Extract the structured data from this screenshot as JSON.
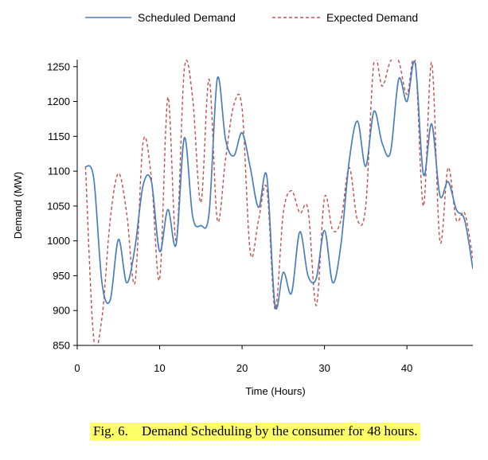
{
  "caption": {
    "label": "Fig. 6.",
    "text": "Demand Scheduling by the consumer for 48 hours.",
    "highlight": "#ffff66"
  },
  "chart_data": {
    "type": "line",
    "title": "",
    "xlabel": "Time (Hours)",
    "ylabel": "Demand (MW)",
    "xlim": [
      0,
      48
    ],
    "ylim": [
      850,
      1260
    ],
    "xticks": [
      0,
      10,
      20,
      30,
      40
    ],
    "yticks": [
      850,
      900,
      950,
      1000,
      1050,
      1100,
      1150,
      1200,
      1250
    ],
    "grid": false,
    "legend": "top",
    "x": [
      1,
      2,
      3,
      4,
      5,
      6,
      7,
      8,
      9,
      10,
      11,
      12,
      13,
      14,
      15,
      16,
      17,
      18,
      19,
      20,
      21,
      22,
      23,
      24,
      25,
      26,
      27,
      28,
      29,
      30,
      31,
      32,
      33,
      34,
      35,
      36,
      37,
      38,
      39,
      40,
      41,
      42,
      43,
      44,
      45,
      46,
      47,
      48
    ],
    "series": [
      {
        "name": "Scheduled Demand",
        "color": "#4a7ebb",
        "style": "solid",
        "values": [
          1107,
          1090,
          940,
          915,
          1002,
          940,
          990,
          1080,
          1085,
          985,
          1045,
          995,
          1148,
          1035,
          1022,
          1040,
          1233,
          1145,
          1122,
          1155,
          1105,
          1048,
          1093,
          907,
          955,
          925,
          1013,
          950,
          946,
          1015,
          940,
          995,
          1115,
          1172,
          1107,
          1186,
          1140,
          1127,
          1232,
          1200,
          1255,
          1095,
          1168,
          1065,
          1085,
          1045,
          1030,
          960
        ]
      },
      {
        "name": "Expected Demand",
        "color": "#c0504d",
        "style": "dashed",
        "values": [
          1107,
          860,
          890,
          1030,
          1097,
          1040,
          940,
          1142,
          1090,
          945,
          1206,
          1000,
          1247,
          1205,
          1055,
          1232,
          1030,
          1118,
          1195,
          1190,
          983,
          1030,
          1075,
          902,
          1040,
          1072,
          1040,
          1045,
          907,
          1062,
          1015,
          1030,
          1105,
          1030,
          1050,
          1258,
          1222,
          1258,
          1258,
          1210,
          1260,
          1050,
          1256,
          1000,
          1105,
          1030,
          1040,
          975
        ]
      }
    ]
  }
}
